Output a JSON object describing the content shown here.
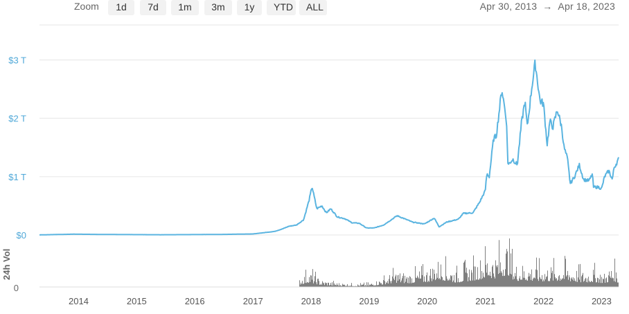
{
  "toolbar": {
    "zoom_label": "Zoom",
    "buttons": [
      "1d",
      "7d",
      "1m",
      "3m",
      "1y",
      "YTD",
      "ALL"
    ],
    "range_start": "Apr 30, 2013",
    "range_arrow": "→",
    "range_end": "Apr 18, 2023"
  },
  "colors": {
    "line": "#5ab4e0",
    "volume": "#7f7f7f",
    "grid": "#e6e6e6",
    "price_axis_text": "#4fa8d8"
  },
  "chart_data": {
    "type": "line",
    "series": [
      {
        "x": [
          "2013-04-30",
          "2013-12-01",
          "2014-06-01",
          "2015-06-01",
          "2016-06-01",
          "2017-01-01",
          "2017-05-15",
          "2017-07-01",
          "2017-08-15",
          "2017-10-01",
          "2017-11-15",
          "2017-12-20",
          "2018-01-07",
          "2018-02-06",
          "2018-03-10",
          "2018-04-07",
          "2018-05-05",
          "2018-06-15",
          "2018-08-01",
          "2018-09-15",
          "2018-11-01",
          "2018-12-15",
          "2019-02-01",
          "2019-04-01",
          "2019-06-26",
          "2019-08-01",
          "2019-10-01",
          "2019-12-15",
          "2020-02-14",
          "2020-03-16",
          "2020-05-01",
          "2020-07-15",
          "2020-08-15",
          "2020-10-15",
          "2020-11-25",
          "2020-12-31",
          "2021-01-10",
          "2021-01-25",
          "2021-02-21",
          "2021-03-10",
          "2021-04-14",
          "2021-05-12",
          "2021-05-23",
          "2021-06-22",
          "2021-07-20",
          "2021-08-15",
          "2021-09-06",
          "2021-09-21",
          "2021-10-20",
          "2021-11-10",
          "2021-12-10",
          "2022-01-01",
          "2022-01-24",
          "2022-02-10",
          "2022-03-01",
          "2022-03-29",
          "2022-04-25",
          "2022-05-10",
          "2022-06-01",
          "2022-06-18",
          "2022-07-15",
          "2022-08-14",
          "2022-09-10",
          "2022-10-15",
          "2022-11-05",
          "2022-11-10",
          "2022-12-15",
          "2023-01-01",
          "2023-01-20",
          "2023-02-15",
          "2023-03-10",
          "2023-03-20",
          "2023-04-18"
        ],
        "values": [
          0.0015,
          0.014,
          0.009,
          0.004,
          0.009,
          0.018,
          0.06,
          0.1,
          0.15,
          0.17,
          0.26,
          0.6,
          0.83,
          0.45,
          0.5,
          0.38,
          0.45,
          0.31,
          0.28,
          0.21,
          0.2,
          0.12,
          0.12,
          0.17,
          0.33,
          0.29,
          0.22,
          0.19,
          0.29,
          0.14,
          0.22,
          0.27,
          0.37,
          0.38,
          0.56,
          0.76,
          1.05,
          1.0,
          1.65,
          1.7,
          2.5,
          2.0,
          1.2,
          1.3,
          1.2,
          1.9,
          2.3,
          1.85,
          2.55,
          2.95,
          2.3,
          2.25,
          1.55,
          1.95,
          1.85,
          2.15,
          1.85,
          1.5,
          1.3,
          0.88,
          1.0,
          1.2,
          0.95,
          0.93,
          1.05,
          0.82,
          0.82,
          0.79,
          1.0,
          1.1,
          0.95,
          1.15,
          1.3
        ]
      }
    ],
    "volume": {
      "label": "24h Vol",
      "start": "2017-10-15",
      "envelope_x": [
        "2017-10-15",
        "2017-12-15",
        "2018-01-10",
        "2018-03-01",
        "2018-06-01",
        "2018-10-01",
        "2019-01-01",
        "2019-04-01",
        "2019-06-15",
        "2019-09-01",
        "2020-01-01",
        "2020-03-12",
        "2020-07-01",
        "2020-11-01",
        "2021-01-10",
        "2021-03-01",
        "2021-05-19",
        "2021-07-01",
        "2021-10-01",
        "2022-01-01",
        "2022-05-12",
        "2022-06-18",
        "2022-09-01",
        "2022-11-10",
        "2023-01-15",
        "2023-03-15",
        "2023-04-18"
      ],
      "envelope_values": [
        0.18,
        0.35,
        0.3,
        0.15,
        0.1,
        0.06,
        0.08,
        0.2,
        0.35,
        0.3,
        0.4,
        0.6,
        0.35,
        0.55,
        0.75,
        0.7,
        1.0,
        0.5,
        0.5,
        0.45,
        0.5,
        0.45,
        0.35,
        0.4,
        0.3,
        0.5,
        0.3
      ]
    },
    "y_ticks": [
      "$0",
      "$1 T",
      "$2 T",
      "$3 T"
    ],
    "y_tick_values": [
      0,
      1,
      2,
      3
    ],
    "volume_tick": "0",
    "x_ticks": [
      "2014",
      "2015",
      "2016",
      "2017",
      "2018",
      "2019",
      "2020",
      "2021",
      "2022",
      "2023"
    ],
    "xlim": [
      "2013-04-30",
      "2023-04-18"
    ],
    "ylim": [
      0,
      3.6
    ],
    "grid": true
  }
}
